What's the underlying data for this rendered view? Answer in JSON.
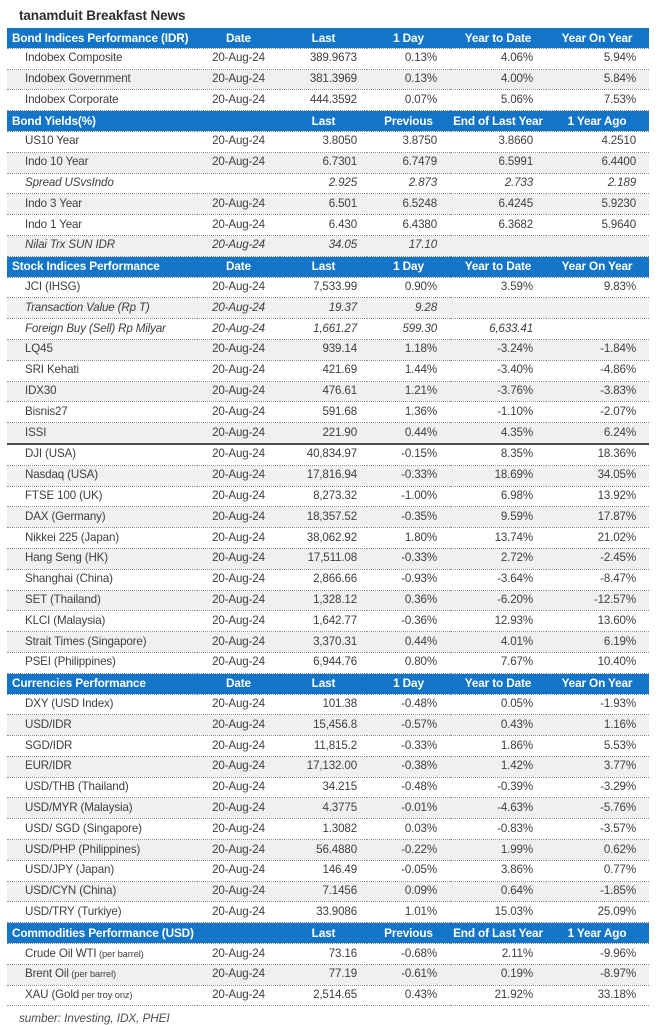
{
  "title": "tanamduit Breakfast News",
  "footer": {
    "source_label": "sumber: Investing, IDX, PHEI"
  },
  "colors": {
    "header_bg": "#1375C8",
    "header_text": "#FFFFFF",
    "row_alt_bg": "#F0F0F0",
    "body_text": "#3F3F3F",
    "divider": "#4E4F51"
  },
  "sections": [
    {
      "title": "Bond Indices Performance (IDR)",
      "columns": [
        "Date",
        "Last",
        "1 Day",
        "Year to Date",
        "Year On Year"
      ],
      "rows": [
        {
          "label": "Indobex Composite",
          "cells": [
            "20-Aug-24",
            "389.9673",
            "0.13%",
            "4.06%",
            "5.94%"
          ]
        },
        {
          "label": "Indobex Government",
          "cells": [
            "20-Aug-24",
            "381.3969",
            "0.13%",
            "4.00%",
            "5.84%"
          ]
        },
        {
          "label": "Indobex Corporate",
          "cells": [
            "20-Aug-24",
            "444.3592",
            "0.07%",
            "5.06%",
            "7.53%"
          ]
        }
      ]
    },
    {
      "title": "Bond Yields(%)",
      "columns": [
        "",
        "Last",
        "Previous",
        "End of Last Year",
        "1 Year Ago"
      ],
      "rows": [
        {
          "label": "US10 Year",
          "cells": [
            "20-Aug-24",
            "3.8050",
            "3.8750",
            "3.8660",
            "4.2510"
          ]
        },
        {
          "label": "Indo 10 Year",
          "cells": [
            "20-Aug-24",
            "6.7301",
            "6.7479",
            "6.5991",
            "6.4400"
          ]
        },
        {
          "label": "Spread USvsIndo",
          "italic": true,
          "cells": [
            "",
            "2.925",
            "2.873",
            "2.733",
            "2.189"
          ]
        },
        {
          "label": "Indo 3 Year",
          "cells": [
            "20-Aug-24",
            "6.501",
            "6.5248",
            "6.4245",
            "5.9230"
          ]
        },
        {
          "label": "Indo 1 Year",
          "cells": [
            "20-Aug-24",
            "6.430",
            "6.4380",
            "6.3682",
            "5.9640"
          ]
        },
        {
          "label": "Nilai Trx SUN IDR",
          "italic": true,
          "cells": [
            "20-Aug-24",
            "34.05",
            "17.10",
            "",
            ""
          ]
        }
      ]
    },
    {
      "title": "Stock Indices Performance",
      "columns": [
        "Date",
        "Last",
        "1 Day",
        "Year to Date",
        "Year On Year"
      ],
      "rows": [
        {
          "label": "JCI (IHSG)",
          "cells": [
            "20-Aug-24",
            "7,533.99",
            "0.90%",
            "3.59%",
            "9.83%"
          ]
        },
        {
          "label": "Transaction Value (Rp T)",
          "italic": true,
          "cells": [
            "20-Aug-24",
            "19.37",
            "9.28",
            "",
            ""
          ]
        },
        {
          "label": "Foreign Buy (Sell) Rp Milyar",
          "italic": true,
          "cells": [
            "20-Aug-24",
            "1,661.27",
            "599.30",
            "6,633.41",
            ""
          ]
        },
        {
          "label": "LQ45",
          "cells": [
            "20-Aug-24",
            "939.14",
            "1.18%",
            "-3.24%",
            "-1.84%"
          ]
        },
        {
          "label": "SRI Kehati",
          "cells": [
            "20-Aug-24",
            "421.69",
            "1.44%",
            "-3.40%",
            "-4.86%"
          ]
        },
        {
          "label": "IDX30",
          "cells": [
            "20-Aug-24",
            "476.61",
            "1.21%",
            "-3.76%",
            "-3.83%"
          ]
        },
        {
          "label": "Bisnis27",
          "cells": [
            "20-Aug-24",
            "591.68",
            "1.36%",
            "-1.10%",
            "-2.07%"
          ]
        },
        {
          "label": "ISSI",
          "divider_after": true,
          "cells": [
            "20-Aug-24",
            "221.90",
            "0.44%",
            "4.35%",
            "6.24%"
          ]
        },
        {
          "label": "DJI (USA)",
          "cells": [
            "20-Aug-24",
            "40,834.97",
            "-0.15%",
            "8.35%",
            "18.36%"
          ]
        },
        {
          "label": "Nasdaq (USA)",
          "cells": [
            "20-Aug-24",
            "17,816.94",
            "-0.33%",
            "18.69%",
            "34.05%"
          ]
        },
        {
          "label": "FTSE 100 (UK)",
          "cells": [
            "20-Aug-24",
            "8,273.32",
            "-1.00%",
            "6.98%",
            "13.92%"
          ]
        },
        {
          "label": "DAX (Germany)",
          "cells": [
            "20-Aug-24",
            "18,357.52",
            "-0.35%",
            "9.59%",
            "17.87%"
          ]
        },
        {
          "label": "Nikkei 225 (Japan)",
          "cells": [
            "20-Aug-24",
            "38,062.92",
            "1.80%",
            "13.74%",
            "21.02%"
          ]
        },
        {
          "label": "Hang Seng (HK)",
          "cells": [
            "20-Aug-24",
            "17,511.08",
            "-0.33%",
            "2.72%",
            "-2.45%"
          ]
        },
        {
          "label": "Shanghai (China)",
          "cells": [
            "20-Aug-24",
            "2,866.66",
            "-0.93%",
            "-3.64%",
            "-8.47%"
          ]
        },
        {
          "label": "SET (Thailand)",
          "cells": [
            "20-Aug-24",
            "1,328.12",
            "0.36%",
            "-6.20%",
            "-12.57%"
          ]
        },
        {
          "label": "KLCI (Malaysia)",
          "cells": [
            "20-Aug-24",
            "1,642.77",
            "-0.36%",
            "12.93%",
            "13.60%"
          ]
        },
        {
          "label": "Strait Times (Singapore)",
          "cells": [
            "20-Aug-24",
            "3,370.31",
            "0.44%",
            "4.01%",
            "6.19%"
          ]
        },
        {
          "label": "PSEI (Philippines)",
          "cells": [
            "20-Aug-24",
            "6,944.76",
            "0.80%",
            "7.67%",
            "10.40%"
          ]
        }
      ]
    },
    {
      "title": "Currencies Performance",
      "columns": [
        "Date",
        "Last",
        "1 Day",
        "Year to Date",
        "Year On Year"
      ],
      "rows": [
        {
          "label": "DXY (USD Index)",
          "cells": [
            "20-Aug-24",
            "101.38",
            "-0.48%",
            "0.05%",
            "-1.93%"
          ]
        },
        {
          "label": "USD/IDR",
          "cells": [
            "20-Aug-24",
            "15,456.8",
            "-0.57%",
            "0.43%",
            "1.16%"
          ]
        },
        {
          "label": "SGD/IDR",
          "cells": [
            "20-Aug-24",
            "11,815.2",
            "-0.33%",
            "1.86%",
            "5.53%"
          ]
        },
        {
          "label": "EUR/IDR",
          "cells": [
            "20-Aug-24",
            "17,132.00",
            "-0.38%",
            "1.42%",
            "3.77%"
          ]
        },
        {
          "label": "USD/THB (Thailand)",
          "cells": [
            "20-Aug-24",
            "34.215",
            "-0.48%",
            "-0.39%",
            "-3.29%"
          ]
        },
        {
          "label": "USD/MYR (Malaysia)",
          "cells": [
            "20-Aug-24",
            "4.3775",
            "-0.01%",
            "-4.63%",
            "-5.76%"
          ]
        },
        {
          "label": "USD/ SGD (Singapore)",
          "cells": [
            "20-Aug-24",
            "1.3082",
            "0.03%",
            "-0.83%",
            "-3.57%"
          ]
        },
        {
          "label": "USD/PHP (Philippines)",
          "cells": [
            "20-Aug-24",
            "56.4880",
            "-0.22%",
            "1.99%",
            "0.62%"
          ]
        },
        {
          "label": "USD/JPY (Japan)",
          "cells": [
            "20-Aug-24",
            "146.49",
            "-0.05%",
            "3.86%",
            "0.77%"
          ]
        },
        {
          "label": "USD/CYN (China)",
          "cells": [
            "20-Aug-24",
            "7.1456",
            "0.09%",
            "0.64%",
            "-1.85%"
          ]
        },
        {
          "label": "USD/TRY (Turkiye)",
          "cells": [
            "20-Aug-24",
            "33.9086",
            "1.01%",
            "15.03%",
            "25.09%"
          ]
        }
      ]
    },
    {
      "title": "Commodities Performance (USD)",
      "columns": [
        "",
        "Last",
        "Previous",
        "End of Last Year",
        "1 Year Ago"
      ],
      "rows": [
        {
          "label": "Crude Oil WTI",
          "label_small": "(per barrel)",
          "cells": [
            "20-Aug-24",
            "73.16",
            "-0.68%",
            "2.11%",
            "-9.96%"
          ]
        },
        {
          "label": "Brent Oil",
          "label_small": "(per barrel)",
          "cells": [
            "20-Aug-24",
            "77.19",
            "-0.61%",
            "0.19%",
            "-8.97%"
          ]
        },
        {
          "label": "XAU (Gold",
          "label_small": "per troy onz)",
          "cells": [
            "20-Aug-24",
            "2,514.65",
            "0.43%",
            "21.92%",
            "33.18%"
          ]
        }
      ]
    }
  ]
}
